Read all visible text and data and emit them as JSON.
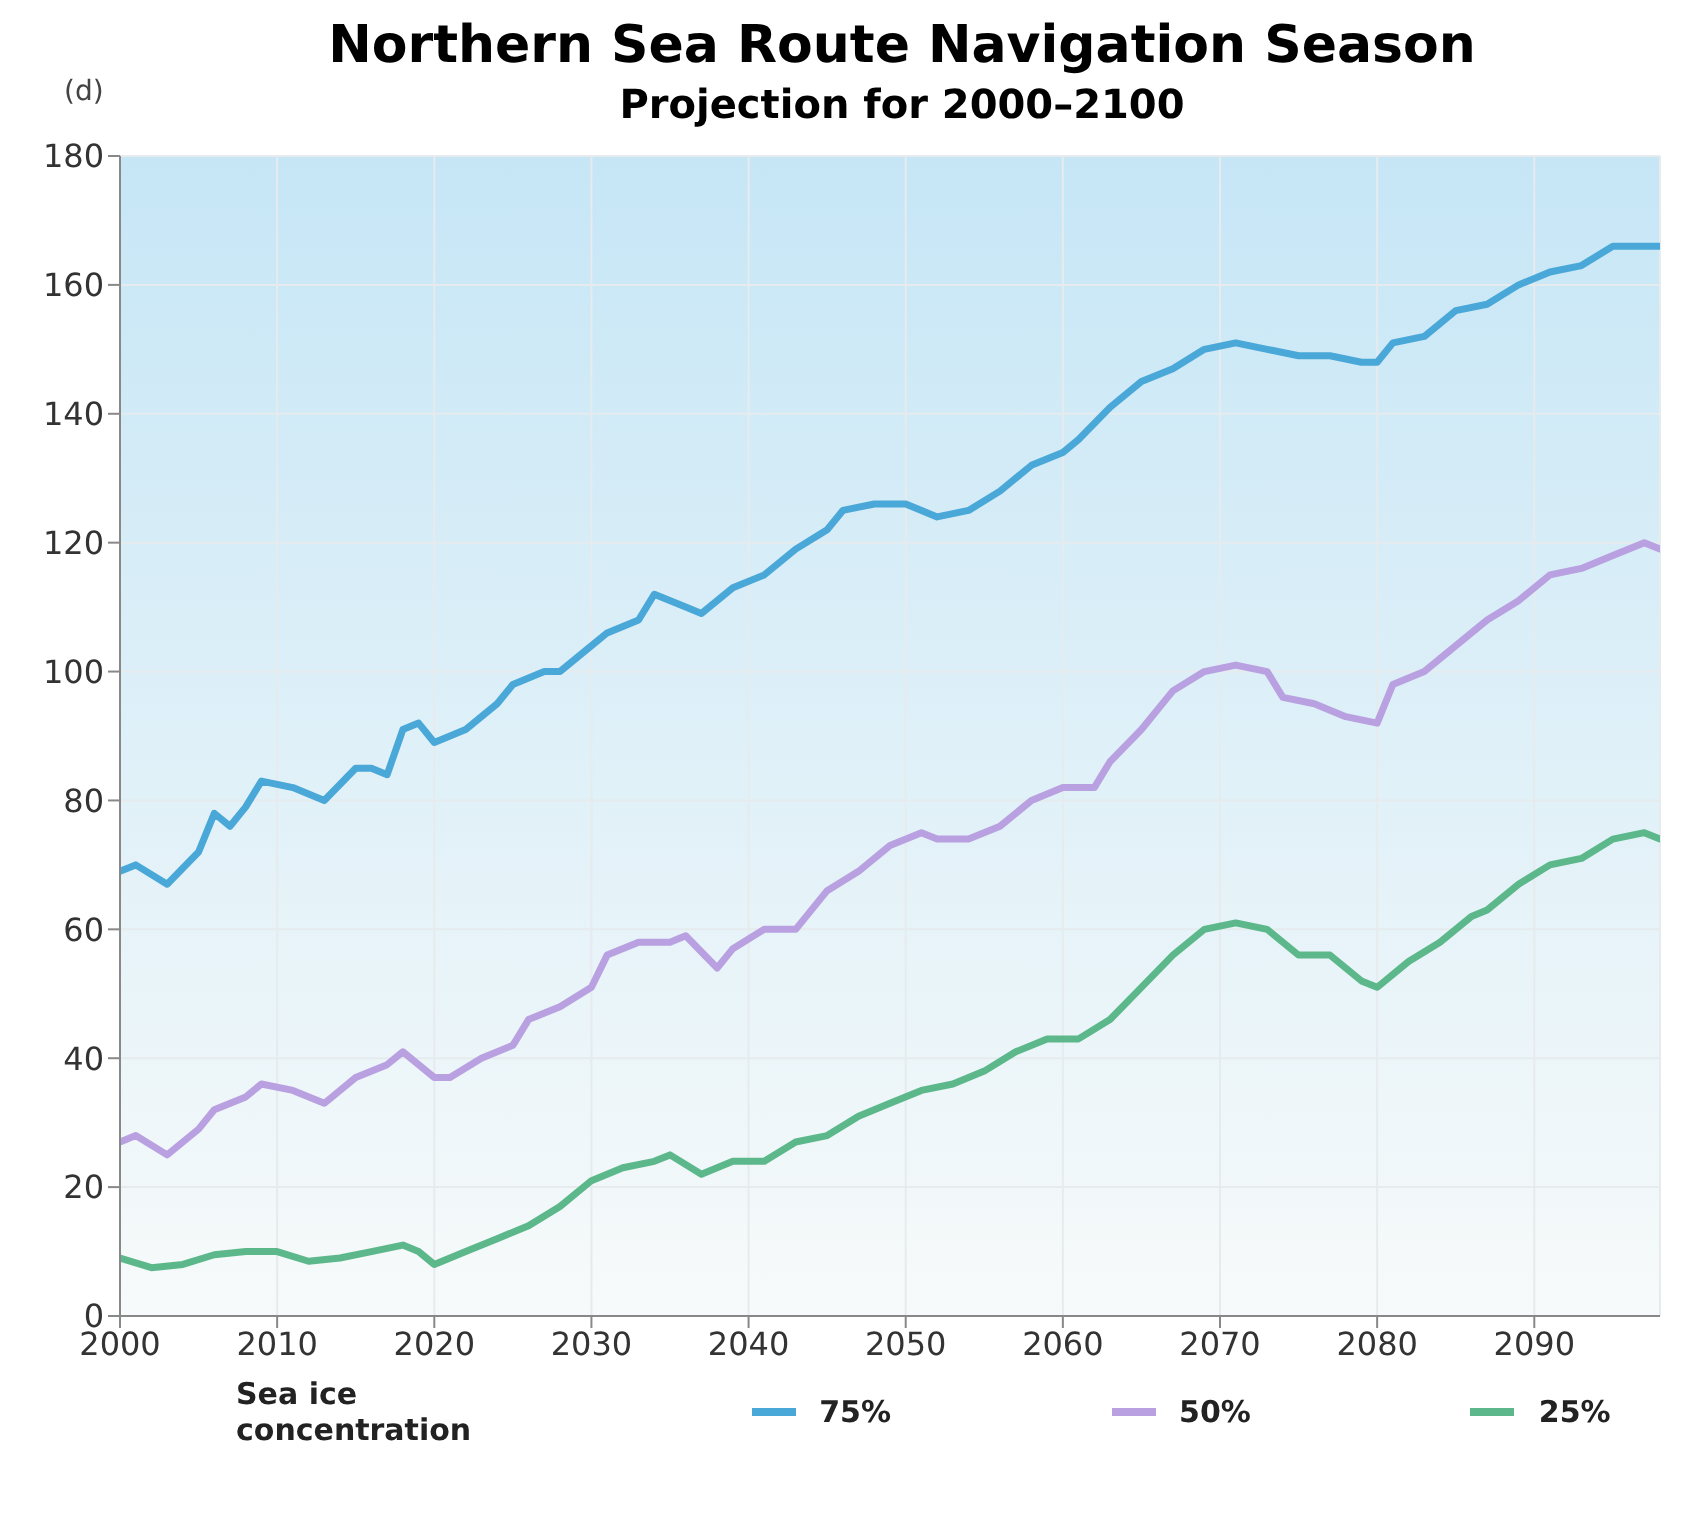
{
  "chart_data": {
    "type": "line",
    "title": "Northern Sea Route Navigation Season",
    "subtitle": "Projection for 2000–2100",
    "ylabel": "(d)",
    "legend_title": "Sea ice concentration",
    "legend": "bottom",
    "grid": true,
    "marker": "none",
    "line_style": "solid",
    "xlim": [
      2000,
      2098
    ],
    "xticks": [
      2000,
      2010,
      2020,
      2030,
      2040,
      2050,
      2060,
      2070,
      2080,
      2090
    ],
    "ylim": [
      0,
      180
    ],
    "yticks": [
      0,
      20,
      40,
      60,
      80,
      100,
      120,
      140,
      160,
      180
    ],
    "series": [
      {
        "name": "75%",
        "color": "#4aa8d8",
        "x": [
          2000,
          2001,
          2003,
          2005,
          2006,
          2007,
          2008,
          2009,
          2011,
          2013,
          2015,
          2016,
          2017,
          2018,
          2019,
          2020,
          2022,
          2024,
          2025,
          2027,
          2028,
          2030,
          2031,
          2033,
          2034,
          2036,
          2037,
          2039,
          2041,
          2043,
          2045,
          2046,
          2048,
          2050,
          2052,
          2054,
          2056,
          2058,
          2060,
          2061,
          2063,
          2065,
          2067,
          2069,
          2071,
          2073,
          2075,
          2077,
          2079,
          2080,
          2081,
          2083,
          2085,
          2087,
          2089,
          2091,
          2093,
          2095,
          2098
        ],
        "values": [
          69,
          70,
          67,
          72,
          78,
          76,
          79,
          83,
          82,
          80,
          85,
          85,
          84,
          91,
          92,
          89,
          91,
          95,
          98,
          100,
          100,
          104,
          106,
          108,
          112,
          110,
          109,
          113,
          115,
          119,
          122,
          125,
          126,
          126,
          124,
          125,
          128,
          132,
          134,
          136,
          141,
          145,
          147,
          150,
          151,
          150,
          149,
          149,
          148,
          148,
          151,
          152,
          156,
          157,
          160,
          162,
          163,
          166,
          166
        ]
      },
      {
        "name": "50%",
        "color": "#b9a0e0",
        "x": [
          2000,
          2001,
          2003,
          2005,
          2006,
          2008,
          2009,
          2011,
          2013,
          2015,
          2017,
          2018,
          2020,
          2021,
          2023,
          2025,
          2026,
          2028,
          2030,
          2031,
          2033,
          2035,
          2036,
          2038,
          2039,
          2041,
          2043,
          2045,
          2047,
          2049,
          2051,
          2052,
          2054,
          2056,
          2058,
          2060,
          2062,
          2063,
          2065,
          2067,
          2069,
          2071,
          2073,
          2074,
          2076,
          2078,
          2080,
          2081,
          2083,
          2085,
          2087,
          2089,
          2091,
          2093,
          2095,
          2097,
          2098
        ],
        "values": [
          27,
          28,
          25,
          29,
          32,
          34,
          36,
          35,
          33,
          37,
          39,
          41,
          37,
          37,
          40,
          42,
          46,
          48,
          51,
          56,
          58,
          58,
          59,
          54,
          57,
          60,
          60,
          66,
          69,
          73,
          75,
          74,
          74,
          76,
          80,
          82,
          82,
          86,
          91,
          97,
          100,
          101,
          100,
          96,
          95,
          93,
          92,
          98,
          100,
          104,
          108,
          111,
          115,
          116,
          118,
          120,
          119
        ]
      },
      {
        "name": "25%",
        "color": "#5cb88a",
        "x": [
          2000,
          2002,
          2004,
          2006,
          2008,
          2010,
          2012,
          2014,
          2016,
          2018,
          2019,
          2020,
          2022,
          2024,
          2026,
          2028,
          2030,
          2032,
          2034,
          2035,
          2037,
          2039,
          2041,
          2043,
          2045,
          2047,
          2049,
          2051,
          2053,
          2055,
          2057,
          2059,
          2061,
          2063,
          2065,
          2067,
          2069,
          2071,
          2073,
          2075,
          2077,
          2079,
          2080,
          2082,
          2084,
          2086,
          2087,
          2089,
          2091,
          2093,
          2095,
          2097,
          2098
        ],
        "values": [
          9,
          7.5,
          8,
          9.5,
          10,
          10,
          8.5,
          9,
          10,
          11,
          10,
          8,
          10,
          12,
          14,
          17,
          21,
          23,
          24,
          25,
          22,
          24,
          24,
          27,
          28,
          31,
          33,
          35,
          36,
          38,
          41,
          43,
          43,
          46,
          51,
          56,
          60,
          61,
          60,
          56,
          56,
          52,
          51,
          55,
          58,
          62,
          63,
          67,
          70,
          71,
          74,
          75,
          74
        ]
      }
    ]
  }
}
